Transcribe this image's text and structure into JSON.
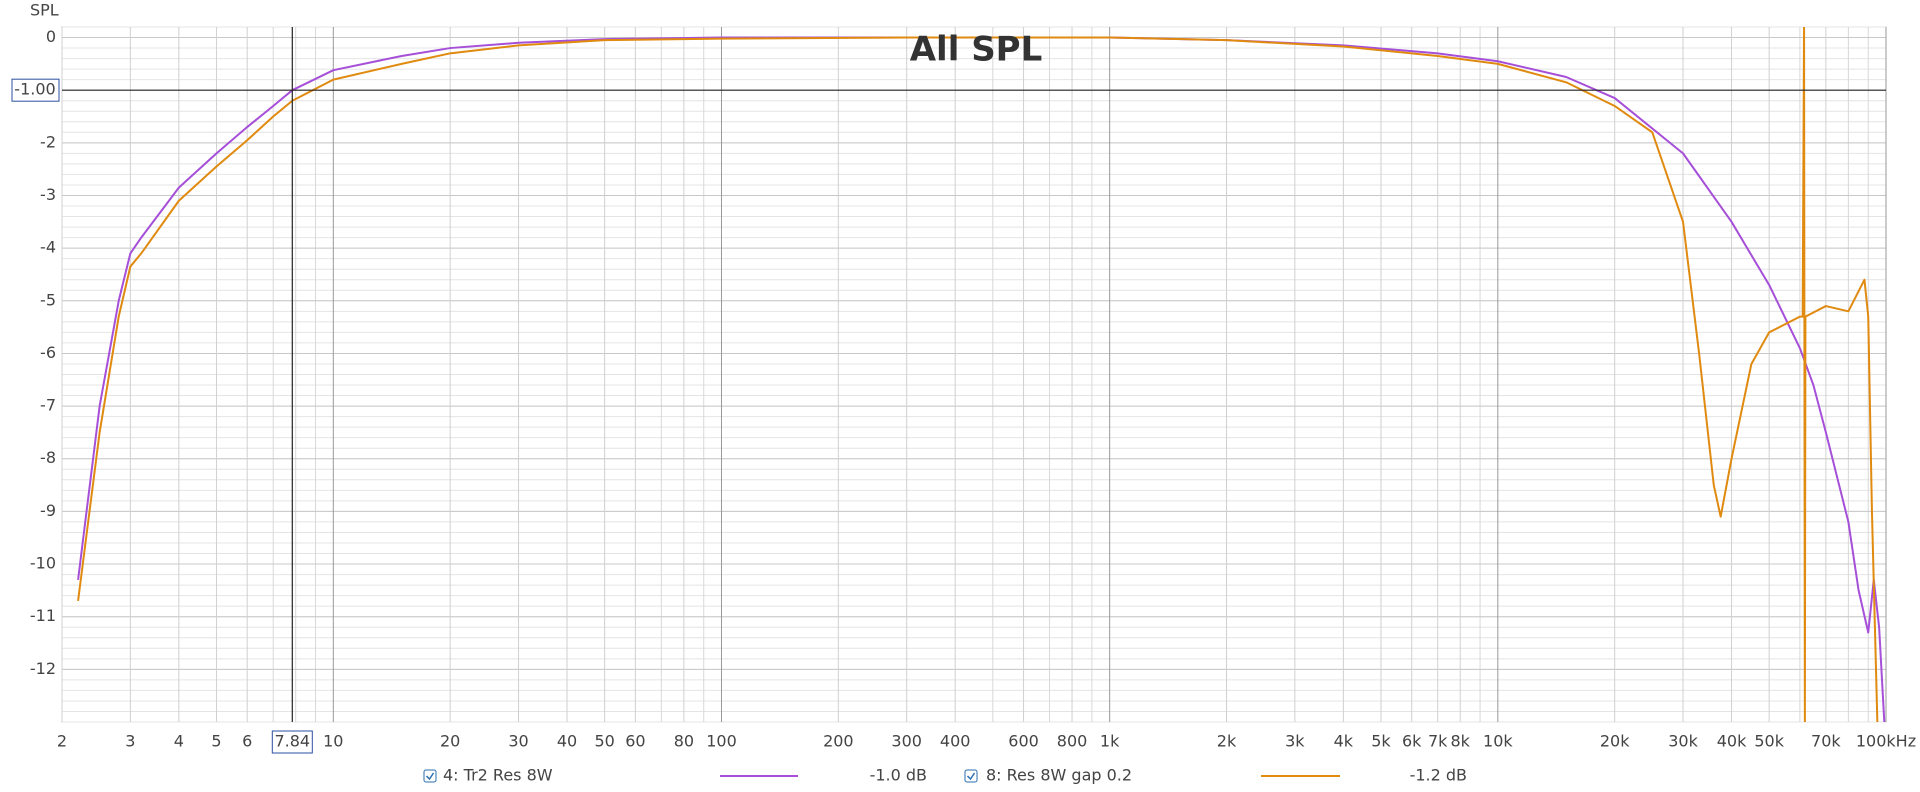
{
  "chart_data": {
    "type": "line",
    "title": "All SPL",
    "y_label": "SPL",
    "log_x": true,
    "xlim": [
      2,
      100000
    ],
    "ylim": [
      -13,
      0.2
    ],
    "xticks": [
      2,
      3,
      4,
      5,
      6,
      10,
      20,
      30,
      40,
      50,
      60,
      80,
      100,
      200,
      300,
      400,
      600,
      800,
      {
        "value": 1000,
        "label": "1k"
      },
      {
        "value": 2000,
        "label": "2k"
      },
      {
        "value": 3000,
        "label": "3k"
      },
      {
        "value": 4000,
        "label": "4k"
      },
      {
        "value": 5000,
        "label": "5k"
      },
      {
        "value": 6000,
        "label": "6k"
      },
      {
        "value": 7000,
        "label": "7k"
      },
      {
        "value": 8000,
        "label": "8k"
      },
      {
        "value": 10000,
        "label": "10k"
      },
      {
        "value": 20000,
        "label": "20k"
      },
      {
        "value": 30000,
        "label": "30k"
      },
      {
        "value": 40000,
        "label": "40k"
      },
      {
        "value": 50000,
        "label": "50k"
      },
      {
        "value": 70000,
        "label": "70k"
      },
      {
        "value": 100000,
        "label": "100kHz"
      }
    ],
    "x_minor_grid": [
      7,
      8,
      9,
      70,
      90,
      500,
      700,
      900,
      9000,
      60000,
      80000,
      90000
    ],
    "yticks": [
      0,
      -2,
      -3,
      -4,
      -5,
      -6,
      -7,
      -8,
      -9,
      -10,
      -11,
      -12
    ],
    "y_minor_step": 0.2,
    "grid": true,
    "cursor": {
      "x": {
        "value": 7.84,
        "label": "7.84"
      },
      "y": {
        "value": -1,
        "label": "-1.00"
      }
    },
    "series": [
      {
        "name": "4: Tr2 Res 8W",
        "color": "#a64fd8",
        "readout_label": "-1.0 dB",
        "x": [
          2.2,
          2.5,
          2.8,
          3.0,
          3.2,
          4,
          5,
          6,
          7,
          7.84,
          10,
          15,
          20,
          30,
          50,
          100,
          300,
          1000,
          2000,
          4000,
          7000,
          10000,
          15000,
          20000,
          30000,
          40000,
          50000,
          60000,
          65000,
          70000,
          80000,
          85000,
          90000,
          93000,
          96000,
          99000
        ],
        "values": [
          -10.3,
          -7,
          -5,
          -4.1,
          -3.8,
          -2.85,
          -2.2,
          -1.7,
          -1.3,
          -1.0,
          -0.62,
          -0.35,
          -0.2,
          -0.1,
          -0.03,
          0,
          0,
          0,
          -0.05,
          -0.15,
          -0.3,
          -0.45,
          -0.75,
          -1.15,
          -2.2,
          -3.5,
          -4.7,
          -5.9,
          -6.6,
          -7.5,
          -9.2,
          -10.5,
          -11.3,
          -10.3,
          -11.2,
          -13
        ]
      },
      {
        "name": "8: Res 8W gap 0.2",
        "color": "#e08a10",
        "readout_label": "-1.2 dB",
        "x": [
          2.2,
          2.5,
          2.8,
          3.0,
          3.2,
          4,
          5,
          6,
          7,
          7.84,
          10,
          15,
          20,
          30,
          50,
          100,
          300,
          1000,
          2000,
          4000,
          7000,
          10000,
          15000,
          20000,
          25000,
          30000,
          33000,
          36000,
          37500,
          40000,
          45000,
          50000,
          60000,
          61000,
          61500,
          61800,
          62000,
          70000,
          80000,
          88000,
          90000,
          92000,
          95000
        ],
        "values": [
          -10.7,
          -7.5,
          -5.3,
          -4.35,
          -4.1,
          -3.1,
          -2.45,
          -1.95,
          -1.5,
          -1.2,
          -0.8,
          -0.5,
          -0.3,
          -0.15,
          -0.05,
          -0.02,
          0,
          0,
          -0.05,
          -0.17,
          -0.35,
          -0.5,
          -0.85,
          -1.3,
          -1.8,
          -3.5,
          -6,
          -8.5,
          -9.1,
          -8,
          -6.2,
          -5.6,
          -5.3,
          -5.3,
          0.2,
          -13,
          -5.3,
          -5.1,
          -5.2,
          -4.6,
          -5.3,
          -9,
          -13
        ]
      }
    ]
  }
}
